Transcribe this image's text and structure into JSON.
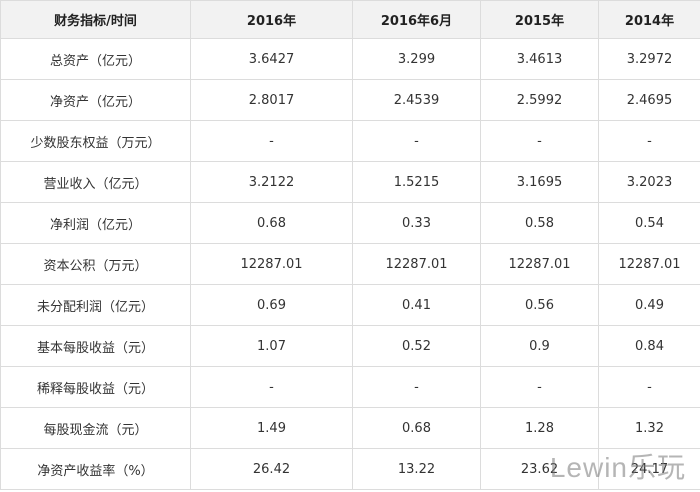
{
  "table": {
    "header": [
      "财务指标/时间",
      "2016年",
      "2016年6月",
      "2015年",
      "2014年"
    ],
    "rows": [
      [
        "总资产（亿元）",
        "3.6427",
        "3.299",
        "3.4613",
        "3.2972"
      ],
      [
        "净资产（亿元）",
        "2.8017",
        "2.4539",
        "2.5992",
        "2.4695"
      ],
      [
        "少数股东权益（万元）",
        "-",
        "-",
        "-",
        "-"
      ],
      [
        "营业收入（亿元）",
        "3.2122",
        "1.5215",
        "3.1695",
        "3.2023"
      ],
      [
        "净利润（亿元）",
        "0.68",
        "0.33",
        "0.58",
        "0.54"
      ],
      [
        "资本公积（万元）",
        "12287.01",
        "12287.01",
        "12287.01",
        "12287.01"
      ],
      [
        "未分配利润（亿元）",
        "0.69",
        "0.41",
        "0.56",
        "0.49"
      ],
      [
        "基本每股收益（元）",
        "1.07",
        "0.52",
        "0.9",
        "0.84"
      ],
      [
        "稀释每股收益（元）",
        "-",
        "-",
        "-",
        "-"
      ],
      [
        "每股现金流（元）",
        "1.49",
        "0.68",
        "1.28",
        "1.32"
      ],
      [
        "净资产收益率（%）",
        "26.42",
        "13.22",
        "23.62",
        "24.17"
      ]
    ]
  },
  "watermark": "Lewin乐玩"
}
